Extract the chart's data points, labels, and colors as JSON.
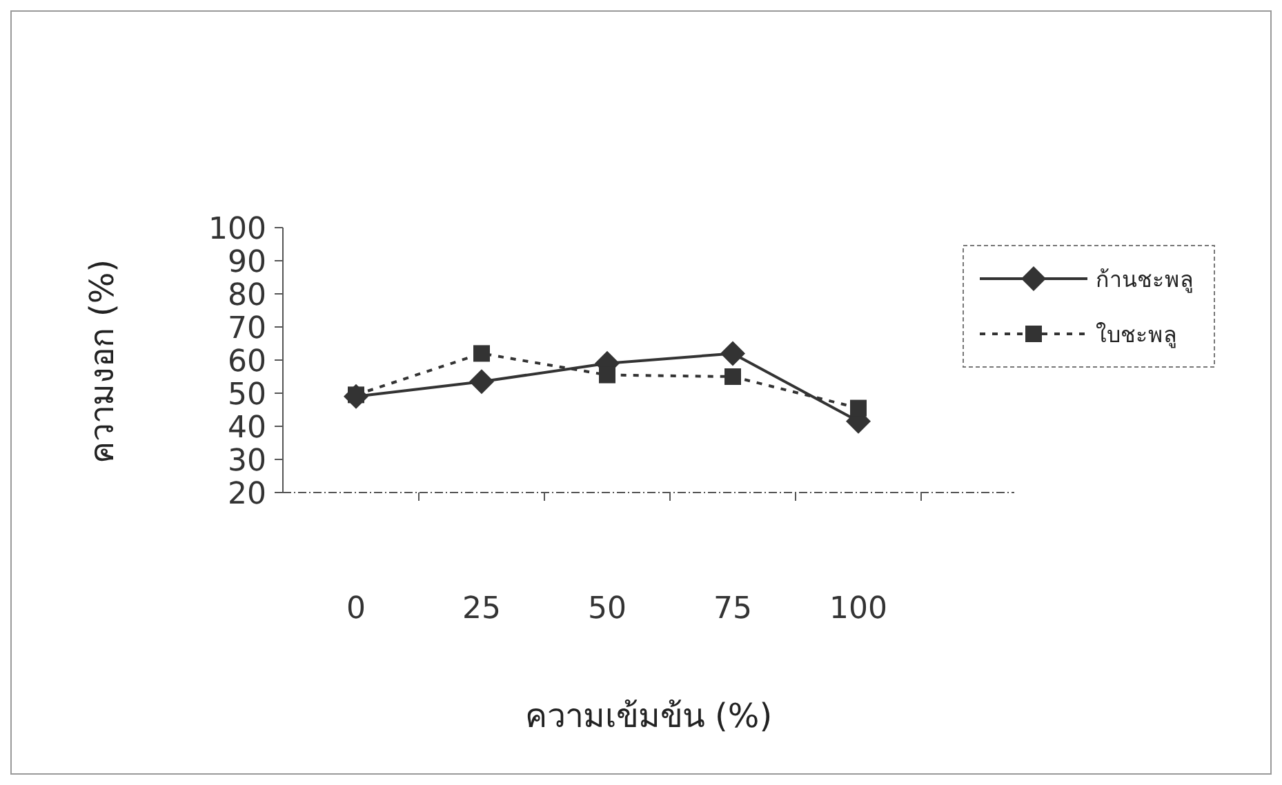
{
  "chart_data": {
    "type": "line",
    "xlabel": "ความเข้มข้น (%)",
    "ylabel": "ความงอก (%)",
    "categories": [
      "0",
      "25",
      "50",
      "75",
      "100"
    ],
    "ylim": [
      20,
      100
    ],
    "yticks": [
      20,
      30,
      40,
      50,
      60,
      70,
      80,
      90,
      100
    ],
    "grid": false,
    "legend": "top right",
    "series": [
      {
        "name": "ก้านชะพลู",
        "color": "#333333",
        "marker": "diamond",
        "line_style": "solid",
        "values": [
          49,
          53.5,
          59,
          62,
          41.5
        ]
      },
      {
        "name": "ใบชะพลู",
        "color": "#333333",
        "marker": "square",
        "line_style": "dotted",
        "values": [
          49.5,
          62,
          55.5,
          55,
          45.5
        ]
      }
    ]
  }
}
